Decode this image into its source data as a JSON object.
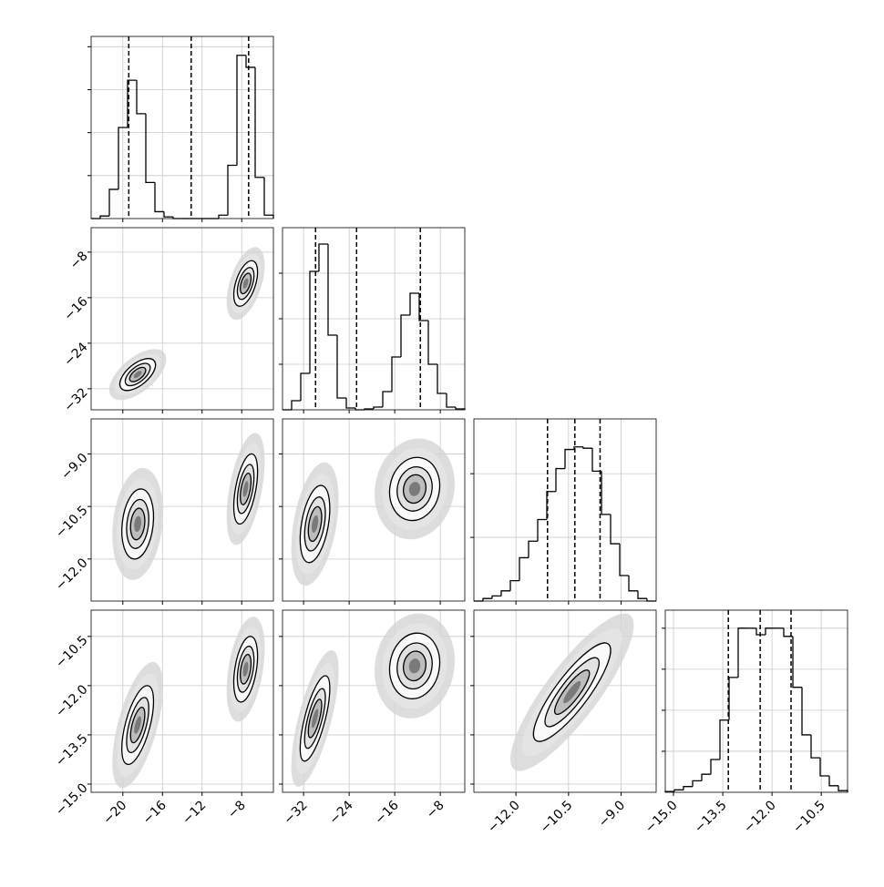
{
  "chart_data": {
    "type": "corner",
    "parameters": [
      {
        "lim": [
          -23.2,
          -4.8
        ],
        "ticks": [
          {
            "value": -20,
            "label": "−20"
          },
          {
            "value": -16,
            "label": "−16"
          },
          {
            "value": -12,
            "label": "−12"
          },
          {
            "value": -8,
            "label": "−8"
          }
        ],
        "quantiles": [
          -19.4,
          -13.1,
          -7.3
        ],
        "hist": {
          "bins": [
            -23.2,
            -22.28,
            -21.36,
            -20.44,
            -19.52,
            -18.6,
            -17.68,
            -16.76,
            -15.84,
            -14.92,
            -14,
            -13.08,
            -12.16,
            -11.24,
            -10.32,
            -9.4,
            -8.48,
            -7.56,
            -6.64,
            -5.72,
            -4.8
          ],
          "counts": [
            0,
            15,
            170,
            530,
            805,
            610,
            210,
            40,
            10,
            0,
            0,
            0,
            0,
            0,
            20,
            310,
            950,
            880,
            240,
            20
          ],
          "ylim": [
            0,
            1060
          ],
          "yticks": [
            250,
            500,
            750,
            1000
          ]
        }
      },
      {
        "lim": [
          -35.7,
          -3.7
        ],
        "ticks": [
          {
            "value": -32,
            "label": "−32"
          },
          {
            "value": -24,
            "label": "−24"
          },
          {
            "value": -16,
            "label": "−16"
          },
          {
            "value": -8,
            "label": "−8"
          }
        ],
        "quantiles": [
          -29.9,
          -22.7,
          -11.5
        ],
        "hist": {
          "bins": [
            -35.7,
            -34.1,
            -32.5,
            -30.9,
            -29.3,
            -27.7,
            -26.1,
            -24.5,
            -22.9,
            -21.3,
            -19.7,
            -18.1,
            -16.5,
            -14.9,
            -13.3,
            -11.7,
            -10.1,
            -8.5,
            -6.9,
            -5.3,
            -3.7
          ],
          "counts": [
            0,
            50,
            200,
            760,
            910,
            410,
            65,
            10,
            0,
            5,
            15,
            100,
            290,
            520,
            640,
            490,
            250,
            90,
            15,
            5
          ],
          "ylim": [
            0,
            1000
          ],
          "yticks": [
            250,
            500,
            750
          ]
        }
      },
      {
        "lim": [
          -13.2,
          -8.0
        ],
        "ticks": [
          {
            "value": -12,
            "label": "−12.0"
          },
          {
            "value": -10.5,
            "label": "−10.5"
          },
          {
            "value": -9,
            "label": "−9.0"
          }
        ],
        "quantiles": [
          -11.1,
          -10.32,
          -9.6
        ],
        "hist": {
          "bins": [
            -13.2,
            -12.94,
            -12.68,
            -12.42,
            -12.16,
            -11.9,
            -11.64,
            -11.38,
            -11.12,
            -10.86,
            -10.6,
            -10.34,
            -10.08,
            -9.82,
            -9.56,
            -9.3,
            -9.04,
            -8.78,
            -8.52,
            -8.26,
            -8.0
          ],
          "counts": [
            0,
            20,
            40,
            80,
            160,
            340,
            470,
            640,
            860,
            1040,
            1190,
            1210,
            1200,
            1020,
            680,
            450,
            200,
            80,
            20,
            0
          ],
          "ylim": [
            0,
            1430
          ],
          "yticks": [
            500,
            1000
          ]
        }
      },
      {
        "lim": [
          -15.25,
          -9.7
        ],
        "ticks": [
          {
            "value": -15,
            "label": "−15.0"
          },
          {
            "value": -13.5,
            "label": "−13.5"
          },
          {
            "value": -12,
            "label": "−12.0"
          },
          {
            "value": -10.5,
            "label": "−10.5"
          }
        ],
        "quantiles": [
          -13.33,
          -12.36,
          -11.42
        ],
        "hist": {
          "bins": [
            -15.25,
            -14.9725,
            -14.695,
            -14.4175,
            -14.14,
            -13.8625,
            -13.585,
            -13.3075,
            -13.03,
            -12.7525,
            -12.475,
            -12.1975,
            -11.92,
            -11.6425,
            -11.365,
            -11.0875,
            -10.81,
            -10.5325,
            -10.255,
            -9.9775,
            -9.7
          ],
          "counts": [
            5,
            15,
            35,
            70,
            110,
            200,
            440,
            700,
            1000,
            1000,
            960,
            1000,
            1000,
            950,
            640,
            350,
            210,
            100,
            40,
            10
          ],
          "ylim": [
            0,
            1110
          ],
          "yticks": [
            250,
            500,
            750,
            1000
          ]
        }
      }
    ],
    "pairs": [
      [
        {
          "blobs": [
            {
              "x": -18.5,
              "y": -29.5,
              "sx": 0.9,
              "sy": 1.4,
              "rho": 0.6
            },
            {
              "x": -7.6,
              "y": -13.5,
              "sx": 0.6,
              "sy": 2.0,
              "rho": 0.5
            }
          ]
        }
      ],
      [
        {
          "blobs": [
            {
              "x": -18.5,
              "y": -11.0,
              "sx": 0.8,
              "sy": 0.5,
              "rho": 0.2
            },
            {
              "x": -7.6,
              "y": -10.0,
              "sx": 0.6,
              "sy": 0.5,
              "rho": 0.5
            }
          ]
        },
        {
          "blobs": [
            {
              "x": -30.0,
              "y": -11.0,
              "sx": 1.3,
              "sy": 0.55,
              "rho": 0.4
            },
            {
              "x": -12.5,
              "y": -10.0,
              "sx": 2.2,
              "sy": 0.45,
              "rho": 0.1
            }
          ]
        }
      ],
      [
        {
          "blobs": [
            {
              "x": -18.5,
              "y": -13.2,
              "sx": 0.8,
              "sy": 0.6,
              "rho": 0.6
            },
            {
              "x": -7.6,
              "y": -11.5,
              "sx": 0.6,
              "sy": 0.5,
              "rho": 0.4
            }
          ]
        },
        {
          "blobs": [
            {
              "x": -30.0,
              "y": -13.0,
              "sx": 1.3,
              "sy": 0.65,
              "rho": 0.7
            },
            {
              "x": -12.5,
              "y": -11.4,
              "sx": 2.2,
              "sy": 0.5,
              "rho": 0.1
            }
          ]
        },
        {
          "blobs": [
            {
              "x": -10.4,
              "y": -12.2,
              "sx": 0.55,
              "sy": 0.75,
              "rho": 0.85
            }
          ]
        }
      ]
    ]
  }
}
